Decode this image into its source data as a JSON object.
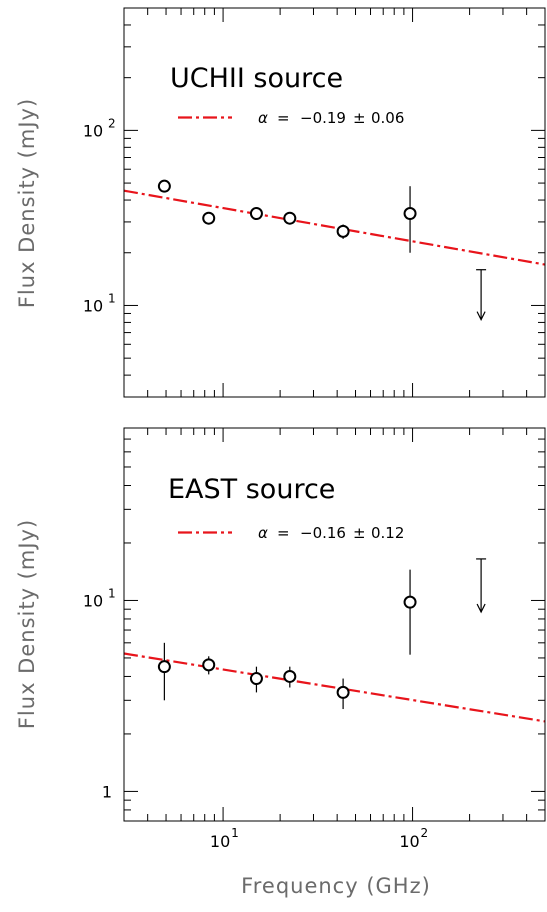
{
  "chart_data": [
    {
      "type": "scatter",
      "title": "UCHII source",
      "ylabel": "Flux Density (mJy)",
      "xlabel": "Frequency (GHz)",
      "xscale": "log",
      "yscale": "log",
      "xlim": [
        3,
        500
      ],
      "ylim": [
        3,
        500
      ],
      "ytick_labels": [
        {
          "value": 10,
          "base": "10",
          "exp": "1"
        },
        {
          "value": 100,
          "base": "10",
          "exp": "2"
        }
      ],
      "xtick_labels": [],
      "points": [
        {
          "x": 4.9,
          "y": 48,
          "yerr_low": 3.5,
          "yerr_high": 3.5
        },
        {
          "x": 8.4,
          "y": 31.5,
          "yerr_low": 2.5,
          "yerr_high": 2.5
        },
        {
          "x": 15,
          "y": 33.5,
          "yerr_low": 2.5,
          "yerr_high": 2.5
        },
        {
          "x": 22.5,
          "y": 31.5,
          "yerr_low": 2.5,
          "yerr_high": 2.5
        },
        {
          "x": 43,
          "y": 26.5,
          "yerr_low": 2.5,
          "yerr_high": 2.5
        },
        {
          "x": 97,
          "y": 33.5,
          "yerr_low": 13.5,
          "yerr_high": 14.5
        }
      ],
      "upper_limits": [
        {
          "x": 230,
          "y": 16,
          "y_arrow_end": 8.3
        }
      ],
      "fit": {
        "alpha": -0.19,
        "alpha_err": 0.06,
        "y_at_10": 36,
        "x_range": [
          3,
          500
        ]
      },
      "legend": {
        "symbol": "α",
        "eq": "=",
        "value": "−0.19",
        "pm": "±",
        "err": "0.06",
        "position": "top-left"
      },
      "colors": {
        "fit": "#e8141b",
        "points": "#000000"
      }
    },
    {
      "type": "scatter",
      "title": "EAST source",
      "ylabel": "Flux Density (mJy)",
      "xlabel": "Frequency (GHz)",
      "xscale": "log",
      "yscale": "log",
      "xlim": [
        3,
        500
      ],
      "ylim": [
        0.7,
        80
      ],
      "ytick_labels": [
        {
          "value": 1,
          "base": "1",
          "exp": ""
        },
        {
          "value": 10,
          "base": "10",
          "exp": "1"
        }
      ],
      "xtick_labels": [
        {
          "value": 10,
          "base": "10",
          "exp": "1"
        },
        {
          "value": 100,
          "base": "10",
          "exp": "2"
        }
      ],
      "points": [
        {
          "x": 4.9,
          "y": 4.5,
          "yerr_low": 1.5,
          "yerr_high": 1.5
        },
        {
          "x": 8.4,
          "y": 4.6,
          "yerr_low": 0.5,
          "yerr_high": 0.5
        },
        {
          "x": 15,
          "y": 3.9,
          "yerr_low": 0.6,
          "yerr_high": 0.6
        },
        {
          "x": 22.5,
          "y": 4.0,
          "yerr_low": 0.5,
          "yerr_high": 0.5
        },
        {
          "x": 43,
          "y": 3.3,
          "yerr_low": 0.6,
          "yerr_high": 0.6
        },
        {
          "x": 97,
          "y": 9.8,
          "yerr_low": 4.6,
          "yerr_high": 4.7
        }
      ],
      "upper_limits": [
        {
          "x": 230,
          "y": 16.5,
          "y_arrow_end": 8.7
        }
      ],
      "fit": {
        "alpha": -0.16,
        "alpha_err": 0.12,
        "y_at_10": 4.35,
        "x_range": [
          3,
          500
        ]
      },
      "legend": {
        "symbol": "α",
        "eq": "=",
        "value": "−0.16",
        "pm": "±",
        "err": "0.12",
        "position": "top-left"
      },
      "colors": {
        "fit": "#e8141b",
        "points": "#000000"
      }
    }
  ]
}
